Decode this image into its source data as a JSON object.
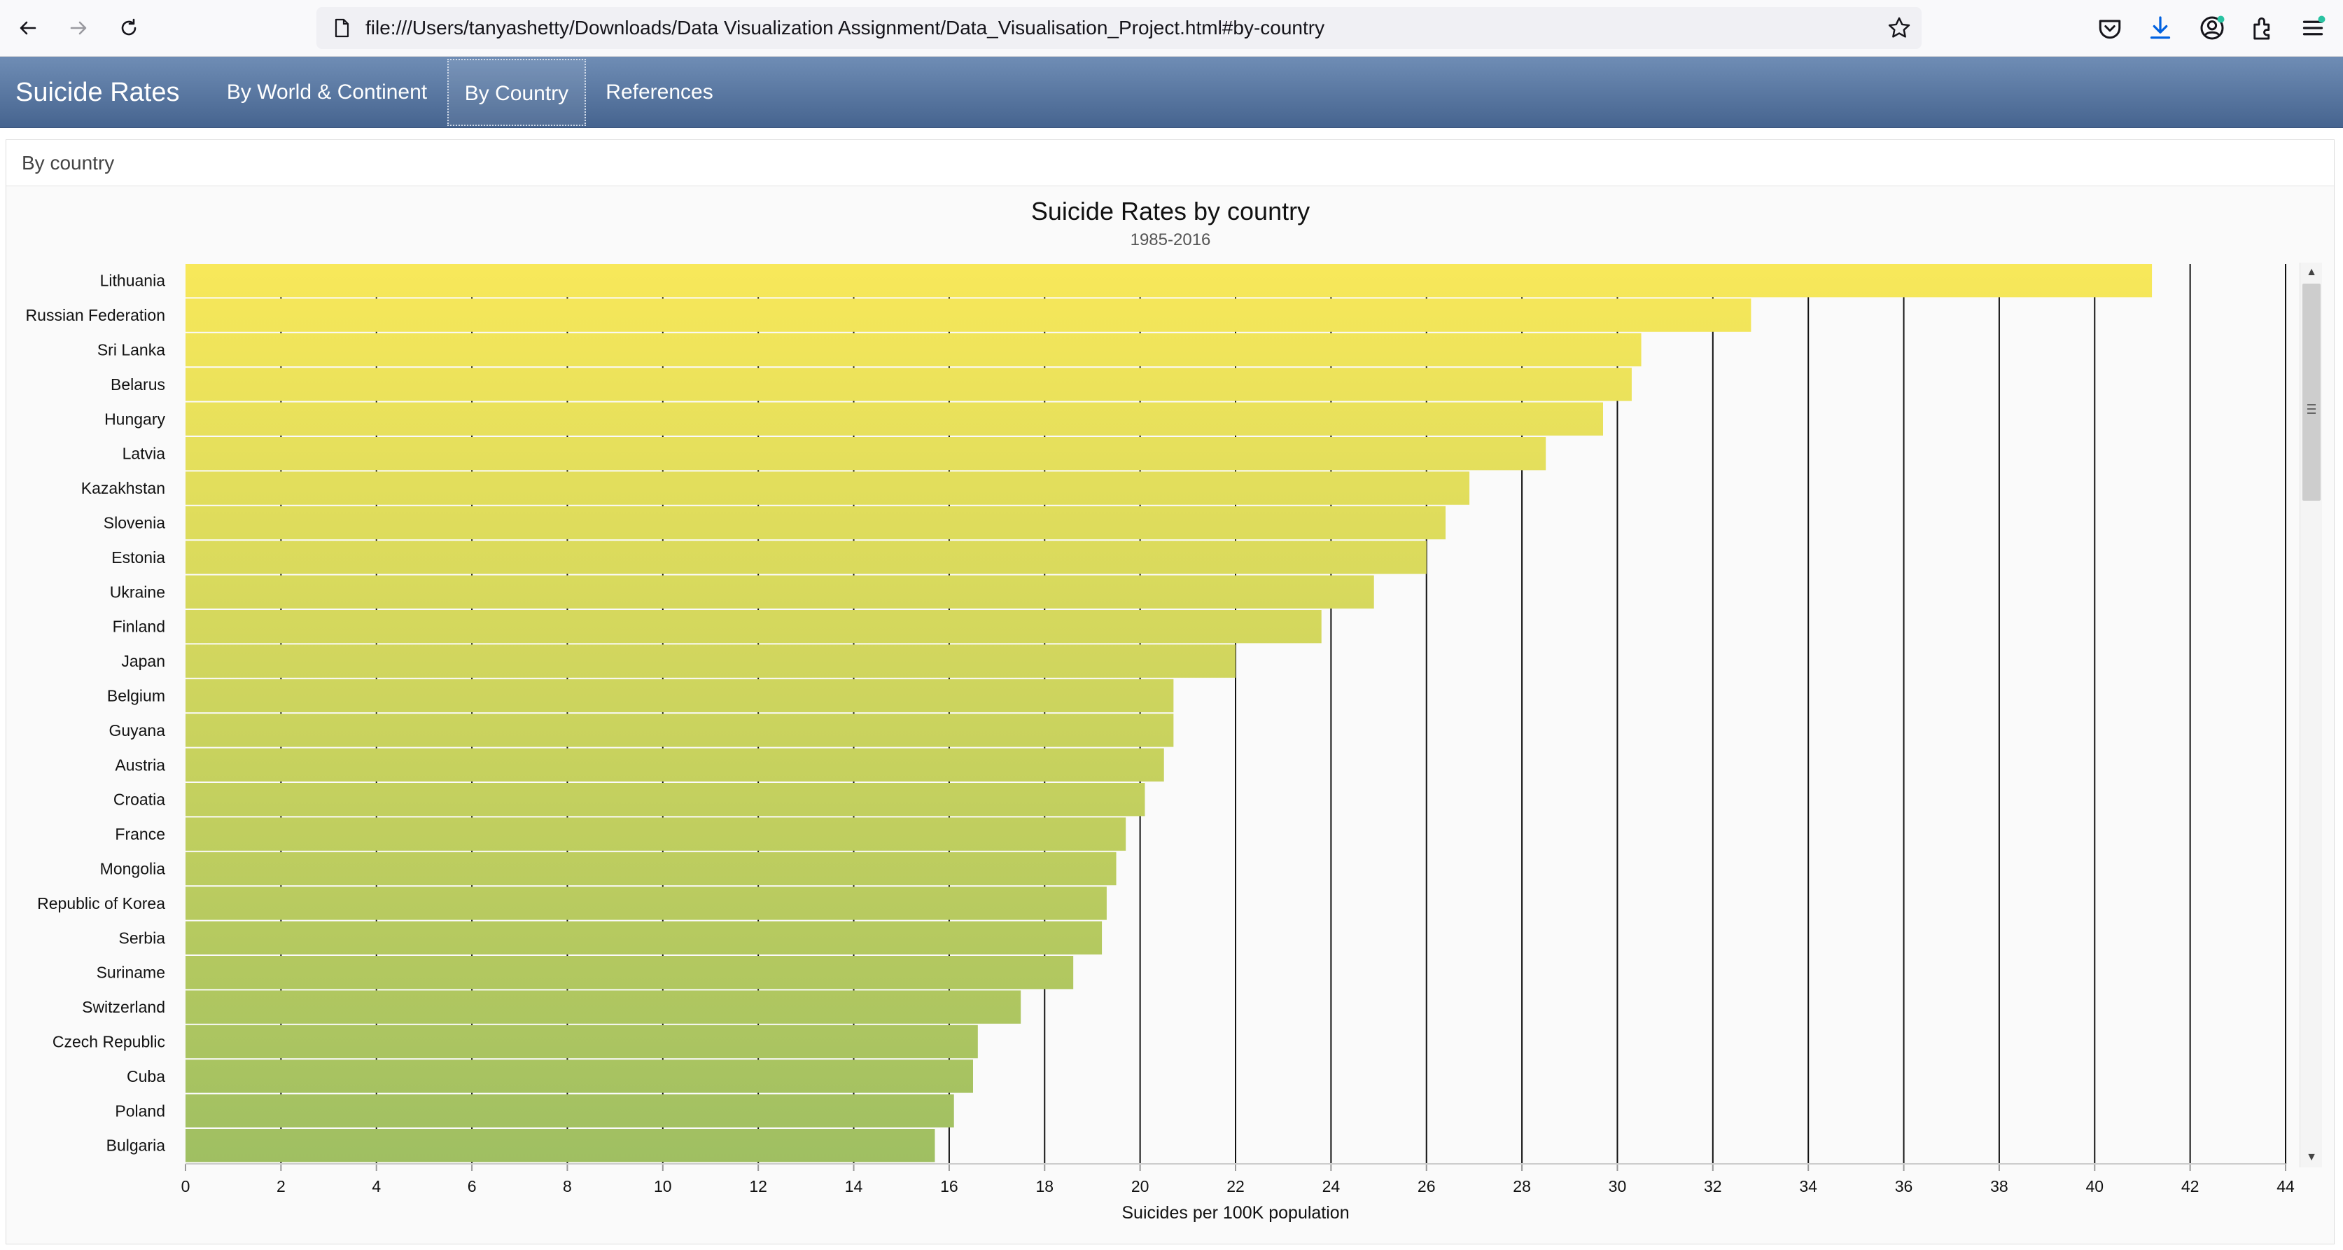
{
  "browser": {
    "url": "file:///Users/tanyashetty/Downloads/Data Visualization Assignment/Data_Visualisation_Project.html#by-country",
    "icons": [
      "back-arrow-icon",
      "forward-arrow-icon",
      "reload-icon",
      "page-icon",
      "bookmark-star-icon",
      "pocket-icon",
      "download-icon",
      "account-icon",
      "extensions-icon",
      "menu-icon"
    ]
  },
  "navbar": {
    "brand": "Suicide Rates",
    "tabs": [
      {
        "label": "By World & Continent",
        "active": false
      },
      {
        "label": "By Country",
        "active": true
      },
      {
        "label": "References",
        "active": false
      }
    ]
  },
  "panel": {
    "heading": "By country"
  },
  "colors": {
    "bar_top": "#f8e85a",
    "bar_bottom": "#9fbf62",
    "navbar_top": "#6f8db5",
    "navbar_bottom": "#46648f"
  },
  "chart_data": {
    "type": "bar",
    "orientation": "horizontal",
    "title": "Suicide Rates by country",
    "subtitle": "1985-2016",
    "xlabel": "Suicides per 100K population",
    "xlim": [
      0,
      44
    ],
    "xticks": [
      "0",
      "2",
      "4",
      "6",
      "8",
      "10",
      "12",
      "14",
      "16",
      "18",
      "20",
      "22",
      "24",
      "26",
      "28",
      "30",
      "32",
      "34",
      "36",
      "38",
      "40",
      "42",
      "44"
    ],
    "grid": "vertical",
    "categories": [
      "Lithuania",
      "Russian Federation",
      "Sri Lanka",
      "Belarus",
      "Hungary",
      "Latvia",
      "Kazakhstan",
      "Slovenia",
      "Estonia",
      "Ukraine",
      "Finland",
      "Japan",
      "Belgium",
      "Guyana",
      "Austria",
      "Croatia",
      "France",
      "Mongolia",
      "Republic of Korea",
      "Serbia",
      "Suriname",
      "Switzerland",
      "Czech Republic",
      "Cuba",
      "Poland",
      "Bulgaria"
    ],
    "values": [
      41.2,
      32.8,
      30.5,
      30.3,
      29.7,
      28.5,
      26.9,
      26.4,
      26.0,
      24.9,
      23.8,
      22.0,
      20.7,
      20.7,
      20.5,
      20.1,
      19.7,
      19.5,
      19.3,
      19.2,
      18.6,
      17.5,
      16.6,
      16.5,
      16.1,
      15.7
    ]
  }
}
